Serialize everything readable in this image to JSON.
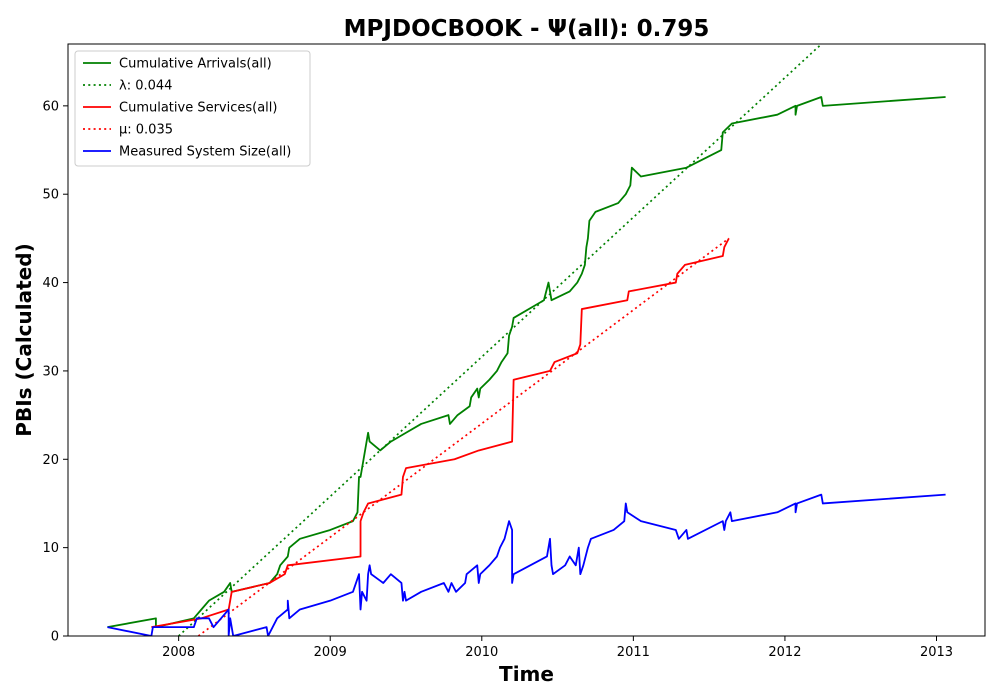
{
  "chart_data": {
    "type": "line",
    "title": "MPJDOCBOOK -  Ψ(all): 0.795",
    "xlabel": "Time",
    "ylabel": "PBIs (Calculated)",
    "xlim": [
      2007.27,
      2013.32
    ],
    "ylim": [
      0,
      67
    ],
    "x_ticks": [
      2008,
      2009,
      2010,
      2011,
      2012,
      2013
    ],
    "y_ticks": [
      0,
      10,
      20,
      30,
      40,
      50,
      60
    ],
    "grid": false,
    "legend_position": "upper left",
    "series": [
      {
        "name": "Cumulative Arrivals(all)",
        "color": "#008000",
        "style": "solid",
        "points": [
          [
            2007.53,
            1
          ],
          [
            2007.85,
            2
          ],
          [
            2007.85,
            1
          ],
          [
            2008.1,
            2
          ],
          [
            2008.15,
            3
          ],
          [
            2008.2,
            4
          ],
          [
            2008.3,
            5
          ],
          [
            2008.34,
            6
          ],
          [
            2008.35,
            5
          ],
          [
            2008.6,
            6
          ],
          [
            2008.65,
            7
          ],
          [
            2008.67,
            8
          ],
          [
            2008.72,
            9
          ],
          [
            2008.73,
            10
          ],
          [
            2008.8,
            11
          ],
          [
            2009.0,
            12
          ],
          [
            2009.15,
            13
          ],
          [
            2009.18,
            14
          ],
          [
            2009.19,
            18
          ],
          [
            2009.2,
            18
          ],
          [
            2009.21,
            19
          ],
          [
            2009.24,
            22
          ],
          [
            2009.25,
            23
          ],
          [
            2009.26,
            22
          ],
          [
            2009.33,
            21
          ],
          [
            2009.4,
            22
          ],
          [
            2009.5,
            23
          ],
          [
            2009.6,
            24
          ],
          [
            2009.78,
            25
          ],
          [
            2009.79,
            24
          ],
          [
            2009.84,
            25
          ],
          [
            2009.92,
            26
          ],
          [
            2009.93,
            27
          ],
          [
            2009.97,
            28
          ],
          [
            2009.98,
            27
          ],
          [
            2009.99,
            28
          ],
          [
            2010.05,
            29
          ],
          [
            2010.1,
            30
          ],
          [
            2010.13,
            31
          ],
          [
            2010.17,
            32
          ],
          [
            2010.18,
            34
          ],
          [
            2010.2,
            35
          ],
          [
            2010.21,
            36
          ],
          [
            2010.41,
            38
          ],
          [
            2010.44,
            40
          ],
          [
            2010.46,
            38
          ],
          [
            2010.58,
            39
          ],
          [
            2010.63,
            40
          ],
          [
            2010.66,
            41
          ],
          [
            2010.68,
            42
          ],
          [
            2010.69,
            44
          ],
          [
            2010.7,
            45
          ],
          [
            2010.71,
            47
          ],
          [
            2010.75,
            48
          ],
          [
            2010.9,
            49
          ],
          [
            2010.95,
            50
          ],
          [
            2010.98,
            51
          ],
          [
            2010.99,
            53
          ],
          [
            2011.05,
            52
          ],
          [
            2011.35,
            53
          ],
          [
            2011.58,
            55
          ],
          [
            2011.59,
            57
          ],
          [
            2011.65,
            58
          ],
          [
            2011.95,
            59
          ],
          [
            2012.07,
            60
          ],
          [
            2012.07,
            59
          ],
          [
            2012.08,
            60
          ],
          [
            2012.24,
            61
          ],
          [
            2012.25,
            60
          ],
          [
            2013.06,
            61
          ]
        ]
      },
      {
        "name": "λ: 0.044",
        "color": "#008000",
        "style": "dotted",
        "points": [
          [
            2008.0,
            0
          ],
          [
            2012.33,
            68.4
          ]
        ]
      },
      {
        "name": "Cumulative Services(all)",
        "color": "#ff0000",
        "style": "solid",
        "points": [
          [
            2007.82,
            1
          ],
          [
            2008.15,
            2
          ],
          [
            2008.33,
            3
          ],
          [
            2008.34,
            4
          ],
          [
            2008.35,
            5
          ],
          [
            2008.6,
            6
          ],
          [
            2008.7,
            7
          ],
          [
            2008.72,
            8
          ],
          [
            2009.2,
            9
          ],
          [
            2009.2,
            13
          ],
          [
            2009.22,
            14
          ],
          [
            2009.25,
            15
          ],
          [
            2009.47,
            16
          ],
          [
            2009.48,
            18
          ],
          [
            2009.5,
            19
          ],
          [
            2009.82,
            20
          ],
          [
            2009.98,
            21
          ],
          [
            2010.2,
            22
          ],
          [
            2010.21,
            29
          ],
          [
            2010.45,
            30
          ],
          [
            2010.48,
            31
          ],
          [
            2010.63,
            32
          ],
          [
            2010.65,
            33
          ],
          [
            2010.66,
            37
          ],
          [
            2010.96,
            38
          ],
          [
            2010.97,
            39
          ],
          [
            2011.28,
            40
          ],
          [
            2011.29,
            41
          ],
          [
            2011.34,
            42
          ],
          [
            2011.59,
            43
          ],
          [
            2011.6,
            44
          ],
          [
            2011.63,
            45
          ]
        ]
      },
      {
        "name": "μ: 0.035",
        "color": "#ff0000",
        "style": "dotted",
        "points": [
          [
            2008.13,
            0
          ],
          [
            2011.63,
            45
          ]
        ]
      },
      {
        "name": "Measured System Size(all)",
        "color": "#0000ff",
        "style": "solid",
        "points": [
          [
            2007.53,
            1
          ],
          [
            2007.82,
            0
          ],
          [
            2007.83,
            1
          ],
          [
            2008.0,
            1
          ],
          [
            2008.1,
            1
          ],
          [
            2008.12,
            2
          ],
          [
            2008.2,
            2
          ],
          [
            2008.23,
            1
          ],
          [
            2008.28,
            2
          ],
          [
            2008.33,
            3
          ],
          [
            2008.33,
            0
          ],
          [
            2008.34,
            2
          ],
          [
            2008.36,
            0
          ],
          [
            2008.58,
            1
          ],
          [
            2008.59,
            0
          ],
          [
            2008.62,
            1
          ],
          [
            2008.65,
            2
          ],
          [
            2008.72,
            3
          ],
          [
            2008.72,
            4
          ],
          [
            2008.73,
            2
          ],
          [
            2008.8,
            3
          ],
          [
            2009.0,
            4
          ],
          [
            2009.15,
            5
          ],
          [
            2009.19,
            7
          ],
          [
            2009.2,
            3
          ],
          [
            2009.21,
            5
          ],
          [
            2009.24,
            4
          ],
          [
            2009.25,
            7
          ],
          [
            2009.26,
            8
          ],
          [
            2009.27,
            7
          ],
          [
            2009.35,
            6
          ],
          [
            2009.4,
            7
          ],
          [
            2009.47,
            6
          ],
          [
            2009.48,
            4
          ],
          [
            2009.49,
            5
          ],
          [
            2009.5,
            4
          ],
          [
            2009.6,
            5
          ],
          [
            2009.75,
            6
          ],
          [
            2009.78,
            5
          ],
          [
            2009.8,
            6
          ],
          [
            2009.83,
            5
          ],
          [
            2009.89,
            6
          ],
          [
            2009.9,
            7
          ],
          [
            2009.97,
            8
          ],
          [
            2009.98,
            6
          ],
          [
            2009.99,
            7
          ],
          [
            2010.05,
            8
          ],
          [
            2010.1,
            9
          ],
          [
            2010.12,
            10
          ],
          [
            2010.15,
            11
          ],
          [
            2010.18,
            13
          ],
          [
            2010.2,
            12
          ],
          [
            2010.2,
            6
          ],
          [
            2010.21,
            7
          ],
          [
            2010.43,
            9
          ],
          [
            2010.45,
            11
          ],
          [
            2010.46,
            8
          ],
          [
            2010.47,
            7
          ],
          [
            2010.55,
            8
          ],
          [
            2010.58,
            9
          ],
          [
            2010.62,
            8
          ],
          [
            2010.64,
            10
          ],
          [
            2010.65,
            7
          ],
          [
            2010.67,
            8
          ],
          [
            2010.7,
            10
          ],
          [
            2010.72,
            11
          ],
          [
            2010.87,
            12
          ],
          [
            2010.94,
            13
          ],
          [
            2010.95,
            15
          ],
          [
            2010.96,
            14
          ],
          [
            2011.05,
            13
          ],
          [
            2011.28,
            12
          ],
          [
            2011.3,
            11
          ],
          [
            2011.35,
            12
          ],
          [
            2011.36,
            11
          ],
          [
            2011.59,
            13
          ],
          [
            2011.6,
            12
          ],
          [
            2011.61,
            13
          ],
          [
            2011.64,
            14
          ],
          [
            2011.65,
            13
          ],
          [
            2011.95,
            14
          ],
          [
            2012.07,
            15
          ],
          [
            2012.07,
            14
          ],
          [
            2012.08,
            15
          ],
          [
            2012.24,
            16
          ],
          [
            2012.25,
            15
          ],
          [
            2013.06,
            16
          ]
        ]
      }
    ]
  }
}
